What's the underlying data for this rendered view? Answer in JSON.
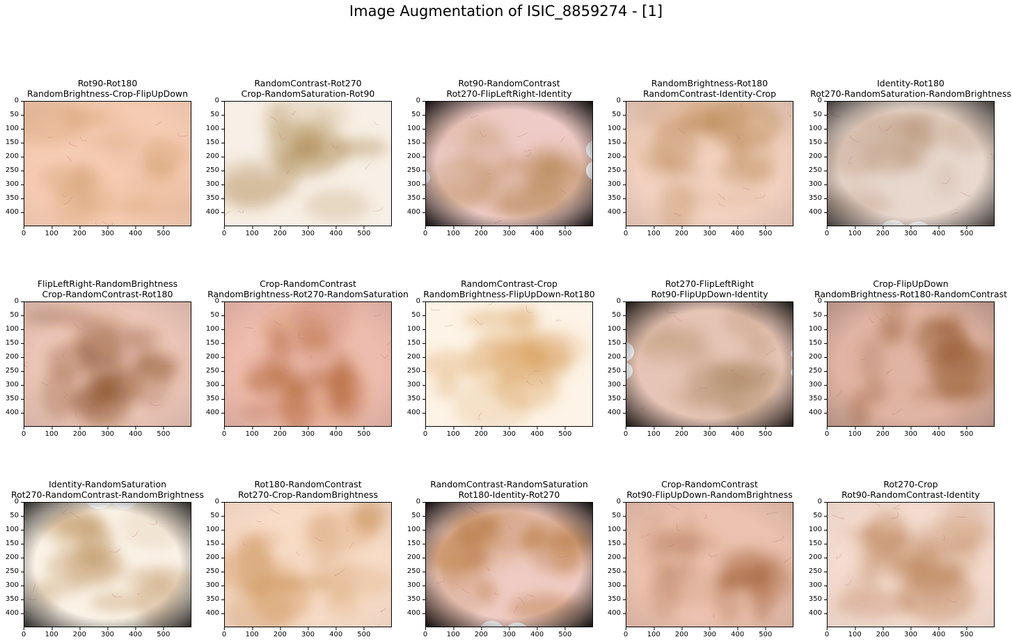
{
  "figure": {
    "title": "Image Augmentation of ISIC_8859274 - [1]",
    "image_id": "ISIC_8859274",
    "x_ticks": [
      "0",
      "100",
      "200",
      "300",
      "400",
      "500"
    ],
    "y_ticks": [
      "0",
      "50",
      "100",
      "150",
      "200",
      "250",
      "300",
      "350",
      "400"
    ],
    "x_range": [
      0,
      600
    ],
    "y_range": [
      450,
      0
    ]
  },
  "panels": [
    {
      "line1": "Rot90-Rot180",
      "line2": "RandomBrightness-Crop-FlipUpDown",
      "base": "#f6ccb4",
      "tint": "#d09a6a",
      "spots": "none",
      "vignette": 0.05
    },
    {
      "line1": "RandomContrast-Rot270",
      "line2": "Crop-RandomSaturation-Rot90",
      "base": "#f8efe6",
      "tint": "#a27a3c",
      "spots": "none",
      "vignette": 0.0
    },
    {
      "line1": "Rot90-RandomContrast",
      "line2": "Rot270-FlipLeftRight-Identity",
      "base": "#eecbc6",
      "tint": "#b48550",
      "spots": "right",
      "vignette": 0.9
    },
    {
      "line1": "RandomBrightness-Rot180",
      "line2": "RandomContrast-Identity-Crop",
      "base": "#f2d1c0",
      "tint": "#b07a40",
      "spots": "none",
      "vignette": 0.1
    },
    {
      "line1": "Identity-Rot180",
      "line2": "Rot270-RandomSaturation-RandomBrightness",
      "base": "#e8d8ce",
      "tint": "#b89478",
      "spots": "bottom",
      "vignette": 0.7
    },
    {
      "line1": "FlipLeftRight-RandomBrightness",
      "line2": "Crop-RandomContrast-Rot180",
      "base": "#ecc6b8",
      "tint": "#80461e",
      "spots": "none",
      "vignette": 0.1
    },
    {
      "line1": "Crop-RandomContrast",
      "line2": "RandomBrightness-Rot270-RandomSaturation",
      "base": "#eebcae",
      "tint": "#a3501a",
      "spots": "none",
      "vignette": 0.1
    },
    {
      "line1": "RandomContrast-Crop",
      "line2": "RandomBrightness-FlipUpDown-Rot180",
      "base": "#fdf3e6",
      "tint": "#d4944a",
      "spots": "none",
      "vignette": 0.0
    },
    {
      "line1": "Rot270-FlipLeftRight",
      "line2": "Rot90-FlipUpDown-Identity",
      "base": "#e6c4b6",
      "tint": "#a98760",
      "spots": "sides",
      "vignette": 0.85
    },
    {
      "line1": "Crop-FlipUpDown",
      "line2": "RandomBrightness-Rot180-RandomContrast",
      "base": "#e0b4a4",
      "tint": "#93592e",
      "spots": "none",
      "vignette": 0.2
    },
    {
      "line1": "Identity-RandomSaturation",
      "line2": "Rot270-RandomContrast-RandomBrightness",
      "base": "#fbf3e8",
      "tint": "#b88a52",
      "spots": "top",
      "vignette": 0.8
    },
    {
      "line1": "Rot180-RandomContrast",
      "line2": "Rot270-Crop-RandomBrightness",
      "base": "#f8dcc8",
      "tint": "#c88c50",
      "spots": "none",
      "vignette": 0.05
    },
    {
      "line1": "RandomContrast-RandomSaturation",
      "line2": "Rot180-Identity-Rot270",
      "base": "#efcbc4",
      "tint": "#a8651c",
      "spots": "bottom",
      "vignette": 0.9
    },
    {
      "line1": "Crop-RandomContrast",
      "line2": "Rot90-FlipUpDown-RandomBrightness",
      "base": "#ecc2b0",
      "tint": "#9a5a30",
      "spots": "none",
      "vignette": 0.1
    },
    {
      "line1": "Rot270-Crop",
      "line2": "Rot90-RandomContrast-Identity",
      "base": "#f4dcd0",
      "tint": "#a6602a",
      "spots": "none",
      "vignette": 0.05
    }
  ]
}
